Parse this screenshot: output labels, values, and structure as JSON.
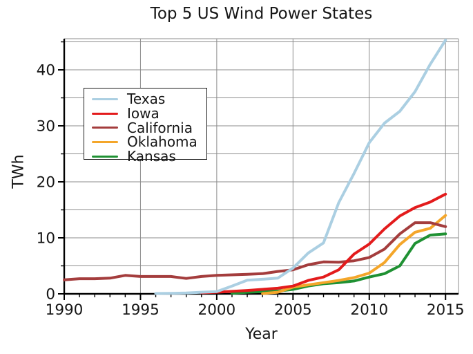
{
  "chart_data": {
    "type": "line",
    "title": "Top 5 US Wind Power States",
    "xlabel": "Year",
    "ylabel": "TWh",
    "x": [
      1990,
      1991,
      1992,
      1993,
      1994,
      1995,
      1996,
      1997,
      1998,
      1999,
      2000,
      2001,
      2002,
      2003,
      2004,
      2005,
      2006,
      2007,
      2008,
      2009,
      2010,
      2011,
      2012,
      2013,
      2014,
      2015
    ],
    "xlim": [
      1990,
      2015.85
    ],
    "ylim": [
      0,
      45.56
    ],
    "xticks_major": [
      1990,
      1995,
      2000,
      2005,
      2010,
      2015
    ],
    "yticks_major": [
      0,
      10,
      20,
      30,
      40
    ],
    "grid_interval": 5,
    "grid": "on",
    "legend_position": "upper left inside",
    "axis_color": "#000000",
    "grid_color": "#8c8c8c",
    "series": [
      {
        "name": "Texas",
        "color": "#abcfe2",
        "values": [
          null,
          null,
          null,
          null,
          null,
          null,
          0.06,
          0.1,
          0.15,
          0.3,
          0.4,
          1.4,
          2.45,
          2.6,
          2.8,
          4.6,
          7.3,
          9.1,
          16.3,
          21.5,
          27.0,
          30.5,
          32.6,
          36.1,
          41.0,
          45.3
        ]
      },
      {
        "name": "Iowa",
        "color": "#e31b1c",
        "values": [
          null,
          null,
          null,
          null,
          null,
          null,
          null,
          null,
          null,
          0.2,
          0.3,
          0.45,
          0.6,
          0.8,
          1.0,
          1.4,
          2.4,
          3.0,
          4.3,
          7.1,
          8.9,
          11.6,
          13.9,
          15.4,
          16.4,
          17.8
        ]
      },
      {
        "name": "California",
        "color": "#a43d3d",
        "values": [
          2.5,
          2.7,
          2.7,
          2.8,
          3.3,
          3.1,
          3.1,
          3.1,
          2.75,
          3.1,
          3.3,
          3.4,
          3.5,
          3.6,
          4.0,
          4.3,
          5.2,
          5.7,
          5.65,
          5.9,
          6.5,
          8.0,
          10.7,
          12.7,
          12.7,
          12.0
        ]
      },
      {
        "name": "Oklahoma",
        "color": "#f4a62a",
        "values": [
          null,
          null,
          null,
          null,
          null,
          null,
          null,
          null,
          null,
          null,
          null,
          null,
          null,
          0.05,
          0.3,
          1.2,
          1.6,
          2.0,
          2.4,
          2.9,
          3.7,
          5.6,
          8.8,
          11.0,
          11.7,
          14.0
        ]
      },
      {
        "name": "Kansas",
        "color": "#1f9133",
        "values": [
          null,
          null,
          null,
          null,
          null,
          null,
          null,
          null,
          null,
          null,
          null,
          0.1,
          0.3,
          0.4,
          0.5,
          0.8,
          1.4,
          1.8,
          2.0,
          2.3,
          3.0,
          3.6,
          5.0,
          9.0,
          10.5,
          10.7
        ]
      }
    ]
  }
}
